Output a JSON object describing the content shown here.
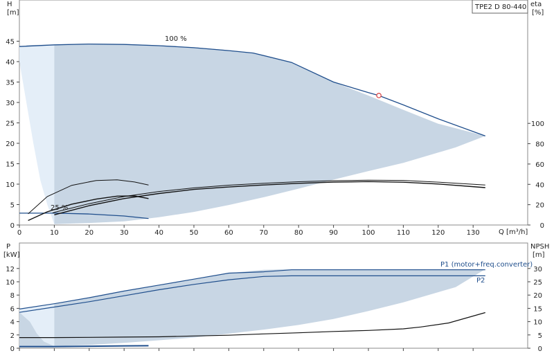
{
  "chart_data": [
    {
      "type": "line",
      "title": "TPE2 D 80-440",
      "xlabel": "Q [m³/h]",
      "ylabel_left": "H\n[m]",
      "ylabel_right": "eta\n[%]",
      "xlim": [
        0,
        135
      ],
      "ylim": [
        0,
        50
      ],
      "y2lim": [
        0,
        110
      ],
      "xticks": [
        0,
        10,
        20,
        30,
        40,
        50,
        60,
        70,
        80,
        90,
        100,
        110,
        120,
        130
      ],
      "yticks": [
        0,
        5,
        10,
        15,
        20,
        25,
        30,
        35,
        40,
        45
      ],
      "y2ticks": [
        0,
        20,
        40,
        60,
        80,
        100
      ],
      "annotations": [
        "100 %",
        "25 %"
      ],
      "colors": {
        "area": "#c8d6e4",
        "area_light": "#e4eef8",
        "curve": "#1f4e8c",
        "eta": "#111111",
        "marker": "#d94040"
      },
      "operating_region": {
        "x": [
          2,
          10,
          20,
          30,
          40,
          50,
          60,
          67,
          78,
          90,
          100,
          110,
          120,
          133.5,
          125,
          110,
          100,
          90,
          80,
          70,
          60,
          50,
          40,
          30,
          20,
          10
        ],
        "y": [
          44,
          44.2,
          44.4,
          44.3,
          44,
          43.5,
          42.8,
          42.1,
          39.8,
          35,
          31.7,
          28.2,
          24.8,
          21.8,
          19,
          15.2,
          13.2,
          11.1,
          8.9,
          6.8,
          4.9,
          3.2,
          1.9,
          0.9,
          0.5,
          0.2
        ]
      },
      "light_region": {
        "x": [
          0,
          10,
          10,
          8,
          6,
          4,
          2,
          0
        ],
        "y": [
          43.7,
          44.1,
          0.2,
          5,
          11,
          20,
          30,
          40
        ]
      },
      "series": [
        {
          "name": "100 %",
          "axis": "left",
          "x": [
            0,
            10,
            20,
            30,
            40,
            50,
            60,
            67,
            78,
            90,
            100,
            103,
            110,
            120,
            133.5
          ],
          "y": [
            43.7,
            44.1,
            44.3,
            44.2,
            43.9,
            43.4,
            42.7,
            42.1,
            39.8,
            35,
            32.4,
            31.7,
            29.4,
            26,
            21.8
          ]
        },
        {
          "name": "25 %",
          "axis": "left",
          "x": [
            0,
            10,
            20,
            30,
            37
          ],
          "y": [
            2.9,
            2.9,
            2.7,
            2.2,
            1.6
          ]
        },
        {
          "name": "",
          "axis": "right",
          "x": [
            2.5,
            8,
            15,
            22,
            28,
            33,
            37
          ],
          "y": [
            11,
            28,
            39,
            43.8,
            44.5,
            42.3,
            39.4
          ]
        },
        {
          "name": "",
          "axis": "right",
          "x": [
            2.5,
            8,
            15,
            22,
            28,
            33,
            37
          ],
          "y": [
            4.4,
            13,
            20.5,
            25.5,
            28.4,
            28.6,
            26
          ]
        },
        {
          "name": "",
          "axis": "right",
          "x": [
            9.5,
            20,
            30,
            40,
            50,
            60,
            70,
            80,
            90,
            100,
            110,
            120,
            133.5
          ],
          "y": [
            12,
            21,
            28,
            33,
            36.5,
            39.2,
            41.1,
            42.6,
            43.6,
            44.1,
            43.9,
            42.2,
            39.4
          ]
        },
        {
          "name": "",
          "axis": "right",
          "x": [
            10,
            20,
            30,
            40,
            50,
            60,
            70,
            80,
            90,
            100,
            110,
            120,
            133.5
          ],
          "y": [
            10,
            19,
            26,
            31,
            35,
            37.4,
            39.4,
            41,
            42.2,
            42.7,
            42.1,
            40.3,
            36.8
          ]
        }
      ],
      "marker": {
        "x": 103,
        "y": 31.7
      }
    },
    {
      "type": "line",
      "ylabel_left": "P\n[kW]",
      "ylabel_right": "NPSH\n[m]",
      "xlim": [
        0,
        135
      ],
      "ylim": [
        0,
        14
      ],
      "y2lim": [
        0,
        35
      ],
      "yticks": [
        0,
        2,
        4,
        6,
        8,
        10,
        12
      ],
      "y2ticks": [
        0,
        5,
        10,
        15,
        20,
        25,
        30
      ],
      "operating_region": {
        "x": [
          0,
          10,
          20,
          30,
          40,
          50,
          60,
          70,
          78,
          90,
          100,
          110,
          120,
          133.5,
          125,
          110,
          100,
          90,
          80,
          70,
          60,
          50,
          40,
          30,
          20,
          10,
          4,
          0
        ],
        "y": [
          5.9,
          6.7,
          7.6,
          8.6,
          9.5,
          10.4,
          11.3,
          11.8,
          11.9,
          11.9,
          11.9,
          11.9,
          11.9,
          11.9,
          9.2,
          6.9,
          5.6,
          4.4,
          3.5,
          2.8,
          2.2,
          1.6,
          1.2,
          0.8,
          0.5,
          0.3,
          0.3,
          0.3
        ]
      },
      "light_region": {
        "x": [
          0,
          10,
          10,
          7,
          5,
          3,
          0
        ],
        "y": [
          5.9,
          6.7,
          0.3,
          1,
          2.2,
          4,
          5.4
        ]
      },
      "series": [
        {
          "name": "P1 (motor+freq.converter)",
          "axis": "left",
          "x": [
            0,
            10,
            20,
            30,
            40,
            50,
            60,
            70,
            78,
            90,
            100,
            110,
            120,
            133.5
          ],
          "y": [
            5.9,
            6.7,
            7.6,
            8.6,
            9.5,
            10.4,
            11.3,
            11.5,
            11.8,
            11.8,
            11.8,
            11.8,
            11.8,
            11.8
          ]
        },
        {
          "name": "P2",
          "axis": "left",
          "x": [
            0,
            10,
            20,
            30,
            40,
            50,
            60,
            70,
            78,
            90,
            100,
            110,
            120,
            133.5
          ],
          "y": [
            5.4,
            6.2,
            7,
            7.9,
            8.8,
            9.6,
            10.3,
            10.8,
            10.9,
            10.9,
            10.9,
            10.9,
            10.9,
            10.9
          ]
        },
        {
          "name": "",
          "axis": "left",
          "x": [
            0,
            10,
            20,
            30,
            37
          ],
          "y": [
            0.25,
            0.25,
            0.3,
            0.35,
            0.38
          ]
        },
        {
          "name": "",
          "axis": "right",
          "x": [
            0,
            10,
            20,
            30,
            40,
            50,
            60,
            70,
            80,
            90,
            100,
            110,
            115,
            123,
            133.5
          ],
          "y": [
            4,
            4,
            4.1,
            4.2,
            4.3,
            4.6,
            4.9,
            5.4,
            5.8,
            6.3,
            6.7,
            7.3,
            8,
            9.5,
            13.4
          ]
        }
      ]
    }
  ]
}
